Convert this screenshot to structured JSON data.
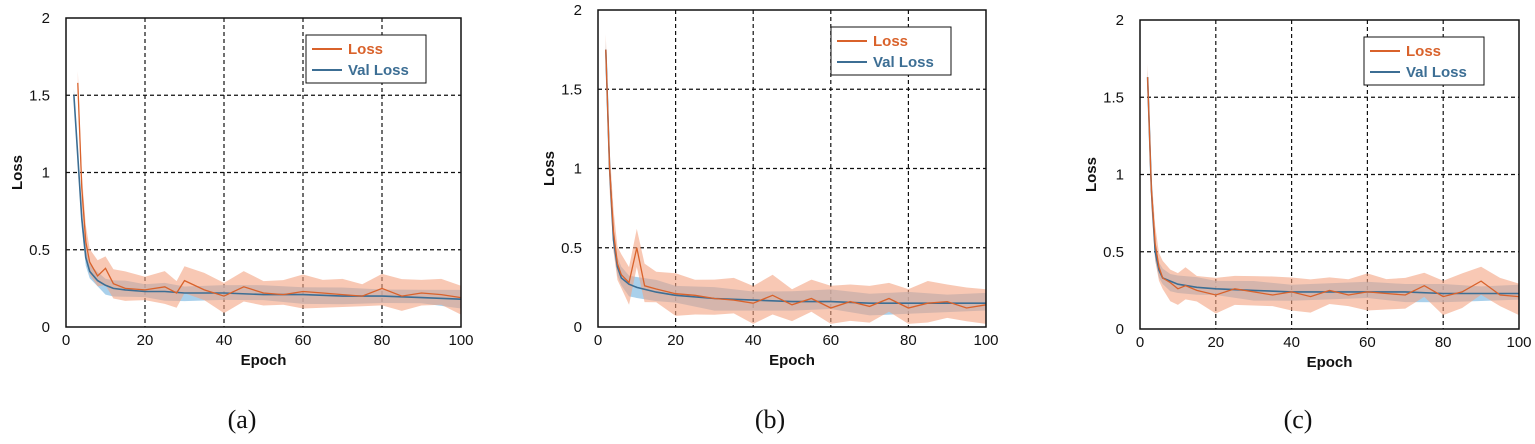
{
  "colors": {
    "loss": "#d9622b",
    "loss_band": "#f4a482",
    "val": "#3c6e94",
    "val_band": "#8cc0e4",
    "grid": "#111111"
  },
  "legend": {
    "loss": "Loss",
    "val_loss": "Val Loss"
  },
  "captions": [
    "(a)",
    "(b)",
    "(c)"
  ],
  "chart_data": [
    {
      "type": "line",
      "xlabel": "Epoch",
      "ylabel": "Loss",
      "xlim": [
        0,
        100
      ],
      "ylim": [
        0,
        2
      ],
      "xticks": [
        "0",
        "20",
        "40",
        "60",
        "80",
        "100"
      ],
      "yticks": [
        "0",
        "0.5",
        "1",
        "1.5",
        "2"
      ],
      "grid": true,
      "legend_position": "top-right",
      "series": [
        {
          "name": "Loss",
          "x": [
            3,
            4,
            5,
            6,
            8,
            10,
            12,
            15,
            20,
            25,
            28,
            30,
            35,
            40,
            45,
            50,
            55,
            60,
            65,
            70,
            75,
            80,
            85,
            90,
            95,
            100
          ],
          "values": [
            1.58,
            0.9,
            0.55,
            0.42,
            0.33,
            0.38,
            0.28,
            0.25,
            0.24,
            0.26,
            0.22,
            0.3,
            0.24,
            0.2,
            0.26,
            0.22,
            0.21,
            0.23,
            0.22,
            0.21,
            0.2,
            0.25,
            0.2,
            0.22,
            0.21,
            0.19
          ]
        },
        {
          "name": "Val Loss",
          "x": [
            2,
            4,
            5,
            6,
            8,
            10,
            12,
            15,
            20,
            25,
            30,
            40,
            50,
            60,
            70,
            80,
            90,
            100
          ],
          "values": [
            1.5,
            0.7,
            0.45,
            0.36,
            0.3,
            0.27,
            0.25,
            0.24,
            0.23,
            0.23,
            0.22,
            0.22,
            0.21,
            0.21,
            0.2,
            0.2,
            0.19,
            0.18
          ]
        }
      ]
    },
    {
      "type": "line",
      "xlabel": "Epoch",
      "ylabel": "Loss",
      "xlim": [
        0,
        100
      ],
      "ylim": [
        0,
        2
      ],
      "xticks": [
        "0",
        "20",
        "40",
        "60",
        "80",
        "100"
      ],
      "yticks": [
        "0",
        "0.5",
        "1",
        "1.5",
        "2"
      ],
      "grid": true,
      "legend_position": "top-right",
      "series": [
        {
          "name": "Loss",
          "x": [
            2,
            3,
            4,
            5,
            6,
            8,
            10,
            12,
            15,
            20,
            25,
            30,
            35,
            40,
            45,
            50,
            55,
            60,
            65,
            70,
            75,
            80,
            85,
            90,
            95,
            100
          ],
          "values": [
            1.75,
            1.0,
            0.6,
            0.4,
            0.33,
            0.28,
            0.5,
            0.26,
            0.24,
            0.21,
            0.2,
            0.18,
            0.17,
            0.15,
            0.2,
            0.14,
            0.18,
            0.12,
            0.16,
            0.13,
            0.18,
            0.12,
            0.15,
            0.16,
            0.12,
            0.14
          ]
        },
        {
          "name": "Val Loss",
          "x": [
            2,
            3,
            4,
            5,
            6,
            8,
            10,
            15,
            20,
            30,
            40,
            50,
            60,
            70,
            80,
            90,
            100
          ],
          "values": [
            1.75,
            1.0,
            0.55,
            0.38,
            0.31,
            0.27,
            0.25,
            0.22,
            0.2,
            0.18,
            0.17,
            0.16,
            0.16,
            0.15,
            0.15,
            0.15,
            0.15
          ]
        }
      ]
    },
    {
      "type": "line",
      "xlabel": "Epoch",
      "ylabel": "Loss",
      "xlim": [
        0,
        100
      ],
      "ylim": [
        0,
        2
      ],
      "xticks": [
        "0",
        "20",
        "40",
        "60",
        "80",
        "100"
      ],
      "yticks": [
        "0",
        "0.5",
        "1",
        "1.5",
        "2"
      ],
      "grid": true,
      "legend_position": "top-right",
      "series": [
        {
          "name": "Loss",
          "x": [
            2,
            3,
            4,
            5,
            6,
            8,
            10,
            12,
            15,
            20,
            25,
            30,
            35,
            40,
            45,
            50,
            55,
            60,
            65,
            70,
            75,
            80,
            85,
            90,
            95,
            100
          ],
          "values": [
            1.63,
            0.9,
            0.55,
            0.4,
            0.33,
            0.3,
            0.26,
            0.28,
            0.25,
            0.22,
            0.26,
            0.24,
            0.22,
            0.24,
            0.21,
            0.25,
            0.22,
            0.24,
            0.23,
            0.22,
            0.28,
            0.21,
            0.24,
            0.31,
            0.22,
            0.21
          ]
        },
        {
          "name": "Val Loss",
          "x": [
            2,
            3,
            4,
            5,
            6,
            8,
            10,
            15,
            20,
            30,
            40,
            50,
            60,
            70,
            80,
            90,
            100
          ],
          "values": [
            1.63,
            0.9,
            0.5,
            0.38,
            0.33,
            0.31,
            0.29,
            0.27,
            0.26,
            0.25,
            0.24,
            0.24,
            0.24,
            0.24,
            0.23,
            0.23,
            0.23
          ]
        }
      ]
    }
  ]
}
